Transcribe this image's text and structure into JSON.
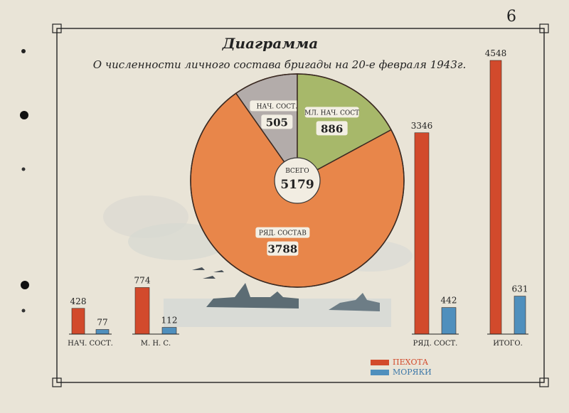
{
  "page": {
    "page_number": "6",
    "title": "Диаграмма",
    "subtitle": "О численности личного состава бригады на 20-е февраля 1943г."
  },
  "colors": {
    "paper": "#e9e4d7",
    "infantry": "#d24a2c",
    "sailors": "#4f8fbd",
    "pie_rank": "#e8864a",
    "pie_command": "#b3acaa",
    "pie_junior": "#a7b86a"
  },
  "chart_data": [
    {
      "type": "pie",
      "center_label": "ВСЕГО",
      "total": 5179,
      "slices": [
        {
          "label": "НАЧ. СОСТ.",
          "value": 505,
          "color": "#b3acaa"
        },
        {
          "label": "МЛ. НАЧ. СОСТ",
          "value": 886,
          "color": "#a7b86a"
        },
        {
          "label": "РЯД. СОСТАВ",
          "value": 3788,
          "color": "#e8864a"
        }
      ]
    },
    {
      "type": "bar",
      "categories": [
        "НАЧ. СОСТ.",
        "М. Н. С.",
        "РЯД. СОСТ.",
        "ИТОГО."
      ],
      "series": [
        {
          "name": "ПЕХОТА",
          "values": [
            428,
            774,
            3346,
            4548
          ],
          "color": "#d24a2c"
        },
        {
          "name": "МОРЯКИ",
          "values": [
            77,
            112,
            442,
            631
          ],
          "color": "#4f8fbd"
        }
      ],
      "legend": "bottom-center"
    }
  ]
}
